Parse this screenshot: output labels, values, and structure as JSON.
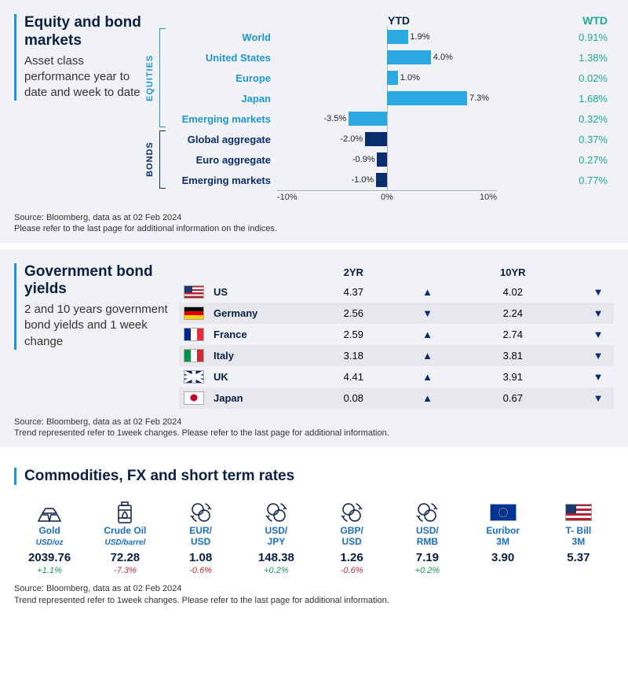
{
  "colors": {
    "equity": "#2aa8e0",
    "bond": "#0a2d6e",
    "wtd": "#1fa89a",
    "title": "#0a1f44",
    "accent": "#2196d6"
  },
  "panel1": {
    "title": "Equity and bond markets",
    "subtitle": "Asset class performance year to date and week to date",
    "header_ytd": "YTD",
    "header_wtd": "WTD",
    "axis": {
      "min": -10,
      "max": 10,
      "ticks": [
        {
          "v": -10,
          "l": "-10%"
        },
        {
          "v": 0,
          "l": "0%"
        },
        {
          "v": 10,
          "l": "10%"
        }
      ]
    },
    "group_eq": "EQUITIES",
    "group_bd": "BONDS",
    "equities": [
      {
        "label": "World",
        "ytd": 1.9,
        "ytd_l": "1.9%",
        "wtd": "0.91%"
      },
      {
        "label": "United States",
        "ytd": 4.0,
        "ytd_l": "4.0%",
        "wtd": "1.38%"
      },
      {
        "label": "Europe",
        "ytd": 1.0,
        "ytd_l": "1.0%",
        "wtd": "0.02%"
      },
      {
        "label": "Japan",
        "ytd": 7.3,
        "ytd_l": "7.3%",
        "wtd": "1.68%"
      },
      {
        "label": "Emerging  markets",
        "ytd": -3.5,
        "ytd_l": "-3.5%",
        "wtd": "0.32%"
      }
    ],
    "bonds": [
      {
        "label": "Global aggregate",
        "ytd": -2.0,
        "ytd_l": "-2.0%",
        "wtd": "0.37%"
      },
      {
        "label": "Euro aggregate",
        "ytd": -0.9,
        "ytd_l": "-0.9%",
        "wtd": "0.27%"
      },
      {
        "label": "Emerging  markets",
        "ytd": -1.0,
        "ytd_l": "-1.0%",
        "wtd": "0.77%"
      }
    ],
    "source": "Source: Bloomberg, data as at  02 Feb 2024\nPlease refer to the last page for additional information on the indices."
  },
  "panel2": {
    "title": "Government bond yields",
    "subtitle": "2 and 10 years government bond yields and 1 week change",
    "col_2yr": "2YR",
    "col_10yr": "10YR",
    "rows": [
      {
        "flag": "us",
        "name": "US",
        "y2": "4.37",
        "d2": "up",
        "y10": "4.02",
        "d10": "down"
      },
      {
        "flag": "de",
        "name": "Germany",
        "y2": "2.56",
        "d2": "down",
        "y10": "2.24",
        "d10": "down"
      },
      {
        "flag": "fr",
        "name": "France",
        "y2": "2.59",
        "d2": "up",
        "y10": "2.74",
        "d10": "down"
      },
      {
        "flag": "it",
        "name": "Italy",
        "y2": "3.18",
        "d2": "up",
        "y10": "3.81",
        "d10": "down"
      },
      {
        "flag": "uk",
        "name": "UK",
        "y2": "4.41",
        "d2": "up",
        "y10": "3.91",
        "d10": "down"
      },
      {
        "flag": "jp",
        "name": "Japan",
        "y2": "0.08",
        "d2": "up",
        "y10": "0.67",
        "d10": "down"
      }
    ],
    "source": "Source: Bloomberg, data as at  02 Feb 2024\nTrend represented refer to 1week changes. Please refer to the last page for additional information."
  },
  "panel3": {
    "title": "Commodities, FX and short term rates",
    "items": [
      {
        "icon": "gold",
        "name": "Gold",
        "sub": "USD/oz",
        "val": "2039.76",
        "chg": "+1.1%",
        "dir": "pos"
      },
      {
        "icon": "oil",
        "name": "Crude Oil",
        "sub": "USD/barrel",
        "val": "72.28",
        "chg": "-7.3%",
        "dir": "neg"
      },
      {
        "icon": "fx",
        "name": "EUR/\nUSD",
        "sub": "",
        "val": "1.08",
        "chg": "-0.6%",
        "dir": "neg"
      },
      {
        "icon": "fx",
        "name": "USD/\nJPY",
        "sub": "",
        "val": "148.38",
        "chg": "+0.2%",
        "dir": "pos"
      },
      {
        "icon": "fx",
        "name": "GBP/\nUSD",
        "sub": "",
        "val": "1.26",
        "chg": "-0.6%",
        "dir": "neg"
      },
      {
        "icon": "fx",
        "name": "USD/\nRMB",
        "sub": "",
        "val": "7.19",
        "chg": "+0.2%",
        "dir": "pos"
      },
      {
        "icon": "eu",
        "name": "Euribor\n3M",
        "sub": "",
        "val": "3.90",
        "chg": "",
        "dir": ""
      },
      {
        "icon": "us",
        "name": "T- Bill\n3M",
        "sub": "",
        "val": "5.37",
        "chg": "",
        "dir": ""
      }
    ],
    "source": "Source: Bloomberg, data as at  02 Feb 2024\nTrend represented refer to 1week changes. Please refer to the last page for additional information."
  }
}
